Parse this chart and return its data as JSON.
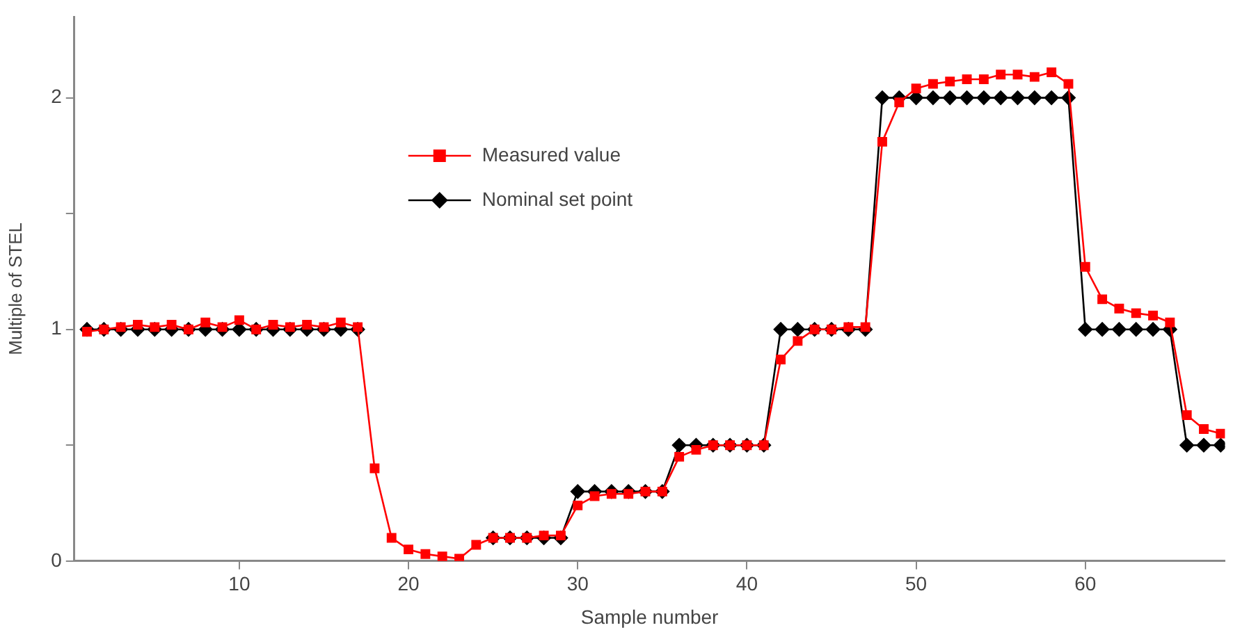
{
  "chart_data": {
    "type": "line",
    "xlabel": "Sample number",
    "ylabel": "Multiple of STEL",
    "x": [
      1,
      2,
      3,
      4,
      5,
      6,
      7,
      8,
      9,
      10,
      11,
      12,
      13,
      14,
      15,
      16,
      17,
      18,
      19,
      20,
      21,
      22,
      23,
      24,
      25,
      26,
      27,
      28,
      29,
      30,
      31,
      32,
      33,
      34,
      35,
      36,
      37,
      38,
      39,
      40,
      41,
      42,
      43,
      44,
      45,
      46,
      47,
      48,
      49,
      50,
      51,
      52,
      53,
      54,
      55,
      56,
      57,
      58,
      59,
      60,
      61,
      62,
      63,
      64,
      65,
      66,
      67,
      68
    ],
    "xlim": [
      0.25,
      68.25
    ],
    "xticks": [
      10,
      20,
      30,
      40,
      50,
      60
    ],
    "ylim": [
      0,
      2.35
    ],
    "yticks": [
      0,
      {
        "value": 0.5,
        "label": null
      },
      1,
      {
        "value": 1.5,
        "label": null
      },
      2
    ],
    "grid": false,
    "legend": "top",
    "line_style": "solid",
    "series": [
      {
        "name": "Measured value",
        "color": "#ff0000",
        "marker": "square",
        "values": [
          0.99,
          1.0,
          1.01,
          1.02,
          1.01,
          1.02,
          1.0,
          1.03,
          1.01,
          1.04,
          1.0,
          1.02,
          1.01,
          1.02,
          1.01,
          1.03,
          1.01,
          0.4,
          0.1,
          0.05,
          0.03,
          0.02,
          0.01,
          0.07,
          0.1,
          0.1,
          0.1,
          0.11,
          0.11,
          0.24,
          0.28,
          0.29,
          0.29,
          0.3,
          0.3,
          0.45,
          0.48,
          0.5,
          0.5,
          0.5,
          0.5,
          0.87,
          0.95,
          1.0,
          1.0,
          1.01,
          1.01,
          1.81,
          1.98,
          2.04,
          2.06,
          2.07,
          2.08,
          2.08,
          2.1,
          2.1,
          2.09,
          2.11,
          2.06,
          1.27,
          1.13,
          1.09,
          1.07,
          1.06,
          1.03,
          0.63,
          0.57,
          0.55
        ]
      },
      {
        "name": "Nominal set point",
        "color": "#000000",
        "marker": "diamond",
        "values": [
          1,
          1,
          1,
          1,
          1,
          1,
          1,
          1,
          1,
          1,
          1,
          1,
          1,
          1,
          1,
          1,
          1,
          null,
          null,
          null,
          null,
          null,
          null,
          null,
          0.1,
          0.1,
          0.1,
          0.1,
          0.1,
          0.3,
          0.3,
          0.3,
          0.3,
          0.3,
          0.3,
          0.5,
          0.5,
          0.5,
          0.5,
          0.5,
          0.5,
          1,
          1,
          1,
          1,
          1,
          1,
          2,
          2,
          2,
          2,
          2,
          2,
          2,
          2,
          2,
          2,
          2,
          2,
          1,
          1,
          1,
          1,
          1,
          1,
          0.5,
          0.5,
          0.5
        ]
      }
    ]
  }
}
